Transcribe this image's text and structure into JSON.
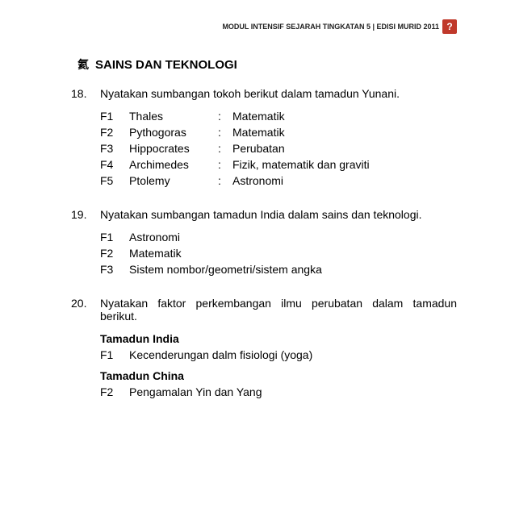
{
  "header": {
    "text": "MODUL INTENSIF SEJARAH TINGKATAN 5 | EDISI MURID 2011",
    "icon_label": "?"
  },
  "section": {
    "glyph": "氦",
    "title": "SAINS DAN TEKNOLOGI"
  },
  "questions": [
    {
      "num": "18.",
      "text": "Nyatakan sumbangan tokoh berikut dalam tamadun Yunani.",
      "pairs": [
        {
          "label": "F1",
          "name": "Thales",
          "colon": ":",
          "value": "Matematik"
        },
        {
          "label": "F2",
          "name": "Pythogoras",
          "colon": ":",
          "value": "Matematik"
        },
        {
          "label": "F3",
          "name": "Hippocrates",
          "colon": ":",
          "value": "Perubatan"
        },
        {
          "label": "F4",
          "name": "Archimedes",
          "colon": ":",
          "value": "Fizik, matematik dan graviti"
        },
        {
          "label": "F5",
          "name": "Ptolemy",
          "colon": ":",
          "value": "Astronomi"
        }
      ]
    },
    {
      "num": "19.",
      "text": "Nyatakan sumbangan tamadun India dalam sains dan teknologi.",
      "lines": [
        {
          "label": "F1",
          "text": "Astronomi"
        },
        {
          "label": "F2",
          "text": "Matematik"
        },
        {
          "label": "F3",
          "text": "Sistem nombor/geometri/sistem angka"
        }
      ]
    },
    {
      "num": "20.",
      "text": "Nyatakan faktor perkembangan ilmu perubatan dalam tamadun berikut.",
      "groups": [
        {
          "heading": "Tamadun India",
          "lines": [
            {
              "label": "F1",
              "text": "Kecenderungan dalm fisiologi (yoga)"
            }
          ]
        },
        {
          "heading": "Tamadun China",
          "lines": [
            {
              "label": "F2",
              "text": "Pengamalan Yin dan Yang"
            }
          ]
        }
      ]
    }
  ]
}
